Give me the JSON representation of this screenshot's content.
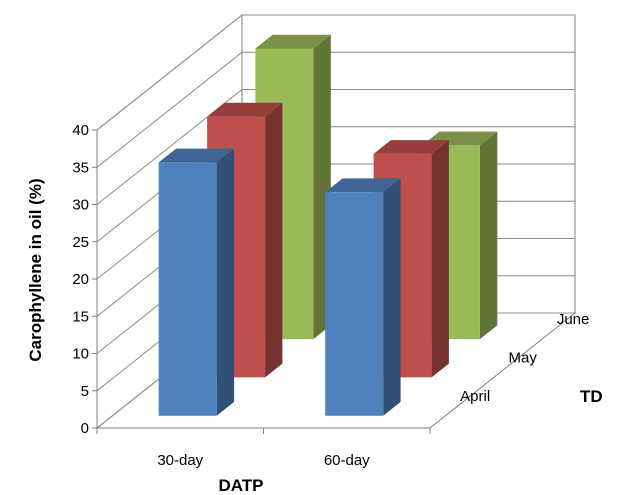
{
  "chart_data": {
    "type": "bar",
    "view": "3d-clustered-depth",
    "categories": [
      "30-day",
      "60-day"
    ],
    "series": [
      {
        "name": "April",
        "values": [
          34,
          30
        ],
        "color": "#4f81bd"
      },
      {
        "name": "May",
        "values": [
          35,
          30
        ],
        "color": "#c0504d"
      },
      {
        "name": "June",
        "values": [
          39,
          26
        ],
        "color": "#9bbb59"
      }
    ],
    "xlabel": "DATP",
    "ylabel": "Carophyllene in oil (%)",
    "zlabel": "TD",
    "ylim": [
      0,
      40
    ],
    "yticks": [
      0,
      5,
      10,
      15,
      20,
      25,
      30,
      35,
      40
    ],
    "grid": true,
    "legend": "none"
  }
}
